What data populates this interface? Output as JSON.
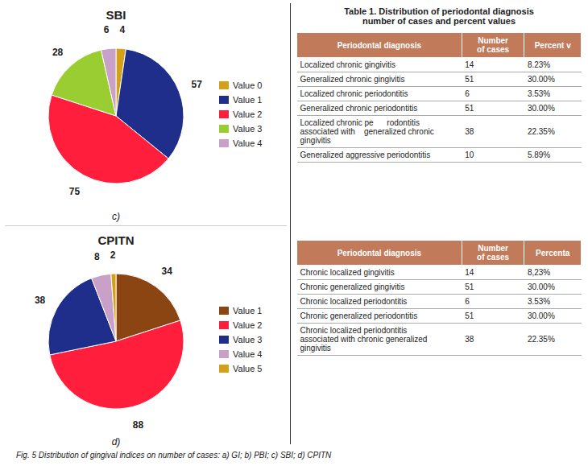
{
  "chart_data": [
    {
      "type": "pie",
      "title": "SBI",
      "subtitle": "c)",
      "categories": [
        "Value 0",
        "Value 1",
        "Value 2",
        "Value 3",
        "Value 4"
      ],
      "values": [
        4,
        57,
        75,
        28,
        6
      ],
      "colors": [
        "#D4A017",
        "#1F2E8A",
        "#FF1F3D",
        "#9ACD32",
        "#C8A0C8"
      ],
      "data_labels": true,
      "legend": "right"
    },
    {
      "type": "pie",
      "title": "CPITN",
      "subtitle": "d)",
      "categories": [
        "Value 1",
        "Value 2",
        "Value 3",
        "Value 4",
        "Value 5"
      ],
      "values": [
        34,
        88,
        38,
        8,
        2
      ],
      "colors": [
        "#8B4513",
        "#FF1F3D",
        "#1F2E8A",
        "#C8A0C8",
        "#D4A017"
      ],
      "data_labels": true,
      "legend": "right"
    },
    {
      "type": "table",
      "title": "Table 1. Distribution of periodontal diagnosis\nnumber of cases and percent values",
      "xlabel": "Periodontal diagnosis",
      "categories": [
        "Localized chronic gingivitis",
        "Generalized chronic gingivitis",
        "Localized chronic periodontitis",
        "Generalized chronic periodontitis",
        "Localized chronic pe      rodontitis\nassociated with    generalized chronic\ngingivitis",
        "Generalized aggressive periodontitis"
      ],
      "series": [
        {
          "name": "Number\nof cases",
          "values": [
            14,
            51,
            6,
            51,
            38,
            10
          ]
        },
        {
          "name": "Percent v",
          "values": [
            8.23,
            30.0,
            3.53,
            30.0,
            22.35,
            5.89
          ],
          "value_labels": [
            "8.23%",
            "30.00%",
            "3.53%",
            "30.00%",
            "22.35%",
            "5.89%"
          ]
        }
      ],
      "color": "#C17A5A",
      "data_labels": true
    },
    {
      "type": "table",
      "xlabel": "Periodontal diagnosis",
      "categories": [
        "Chronic localized gingivitis",
        "Chronic generalized gingivitis",
        "Chronic localized periodontitis",
        "Chronic generalized periodontitis",
        "Chronic localized periodontitis\nassociated with chronic generalized\ngingivitis"
      ],
      "series": [
        {
          "name": "Number\nof cases",
          "values": [
            14,
            51,
            6,
            51,
            38
          ]
        },
        {
          "name": "Percenta",
          "values": [
            8.23,
            30.0,
            3.53,
            30.0,
            22.35
          ],
          "value_labels": [
            "8,23%",
            "30.00%",
            "3.53%",
            "30.00%",
            "22.35%"
          ]
        }
      ],
      "color": "#C17A5A",
      "data_labels": true
    }
  ],
  "caption": "Fig. 5 Distribution of gingival indices on number of cases: a) GI; b) PBI; c) SBI; d) CPITN"
}
